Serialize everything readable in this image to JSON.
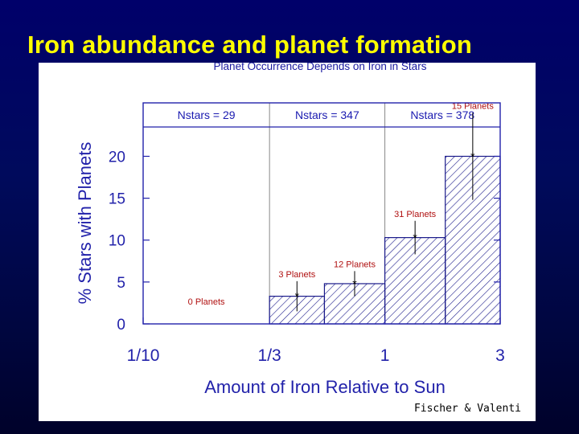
{
  "slide": {
    "title": "Iron abundance and planet formation"
  },
  "chart_data": {
    "type": "bar",
    "title": "Planet Occurrence Depends on Iron in Stars",
    "xlabel": "Amount of Iron Relative to Sun",
    "ylabel": "% Stars with Planets",
    "x_scale": "log",
    "x_ticks": [
      {
        "value": 0.1,
        "label": "1/10"
      },
      {
        "value": 0.3333,
        "label": "1/3"
      },
      {
        "value": 1,
        "label": "1"
      },
      {
        "value": 3,
        "label": "3"
      }
    ],
    "y_ticks": [
      0,
      5,
      10,
      15,
      20
    ],
    "xlim": [
      0.1,
      3
    ],
    "ylim": [
      0,
      23.5
    ],
    "bins": [
      {
        "x_start": 0.1,
        "x_end": 0.3333,
        "value": 0,
        "error": 0,
        "label": "0 Planets"
      },
      {
        "x_start": 0.3333,
        "x_end": 0.5623,
        "value": 3.3,
        "error": 1.8,
        "label": "3 Planets"
      },
      {
        "x_start": 0.5623,
        "x_end": 1,
        "value": 4.8,
        "error": 1.5,
        "label": "12 Planets"
      },
      {
        "x_start": 1,
        "x_end": 1.778,
        "value": 10.3,
        "error": 2.0,
        "label": "31 Planets"
      },
      {
        "x_start": 1.778,
        "x_end": 3,
        "value": 20,
        "error": 5.2,
        "label": "15 Planets"
      }
    ],
    "regions": [
      {
        "label": "Nstars = 29"
      },
      {
        "label": "Nstars = 347"
      },
      {
        "label": "Nstars = 378"
      }
    ],
    "region_boundaries": [
      0.3333,
      1
    ],
    "credit": "Fischer & Valenti",
    "colors": {
      "axis": "#2222aa",
      "bar": "#1a1a8a",
      "bar_label": "#b01010",
      "title": "#ffff00",
      "background": "#000a5c"
    }
  }
}
